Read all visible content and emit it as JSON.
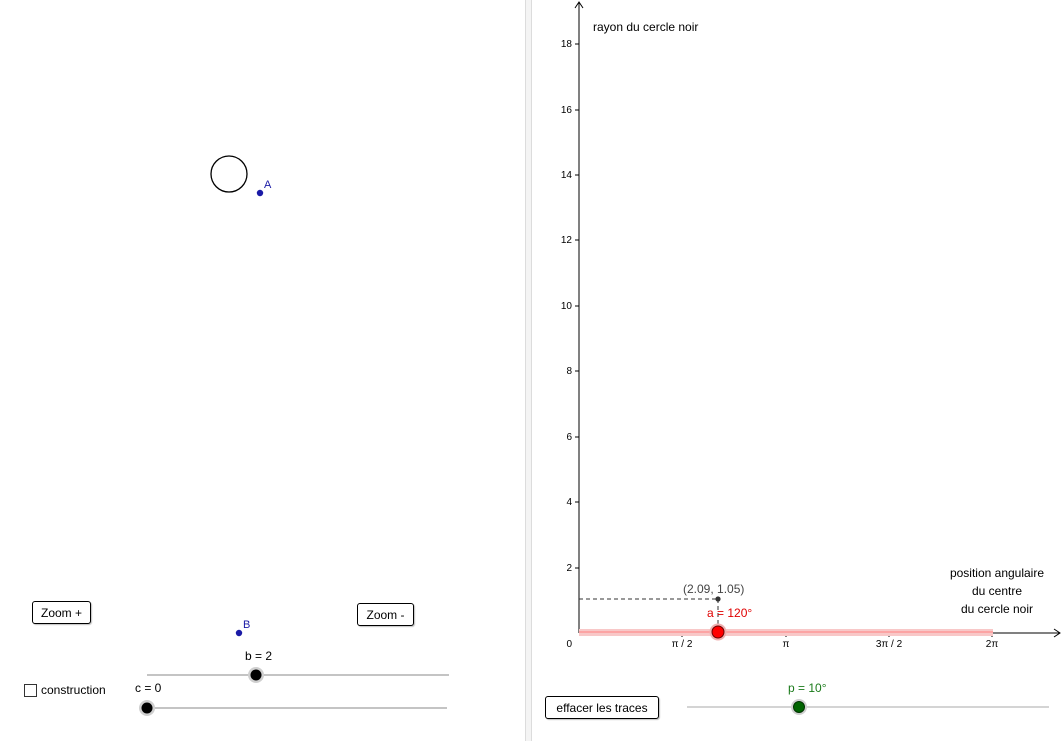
{
  "left_panel": {
    "zoom_in_label": "Zoom +",
    "zoom_out_label": "Zoom -",
    "point_a_label": "A",
    "point_b_label": "B",
    "slider_b_label": "b = 2",
    "slider_c_label": "c = 0",
    "checkbox_label": "construction",
    "checkbox_checked": false
  },
  "right_panel": {
    "y_axis_title": "rayon du cercle noir",
    "x_axis_title_lines": [
      "position angulaire",
      "du centre",
      "du cercle noir"
    ],
    "y_ticks": [
      "2",
      "4",
      "6",
      "8",
      "10",
      "12",
      "14",
      "16",
      "18"
    ],
    "x_ticks": [
      "π / 2",
      "π",
      "3π / 2",
      "2π"
    ],
    "origin_label": "0",
    "point_label": "(2.09, 1.05)",
    "slider_a_label": "a = 120°",
    "slider_p_label": "p = 10°",
    "clear_button_label": "effacer les traces"
  },
  "colors": {
    "point_blue": "#1a1aa6",
    "slider_a_red": "#ff0000",
    "slider_p_green": "#006400",
    "label_red": "#e00000",
    "label_green": "#1a7a1a"
  }
}
